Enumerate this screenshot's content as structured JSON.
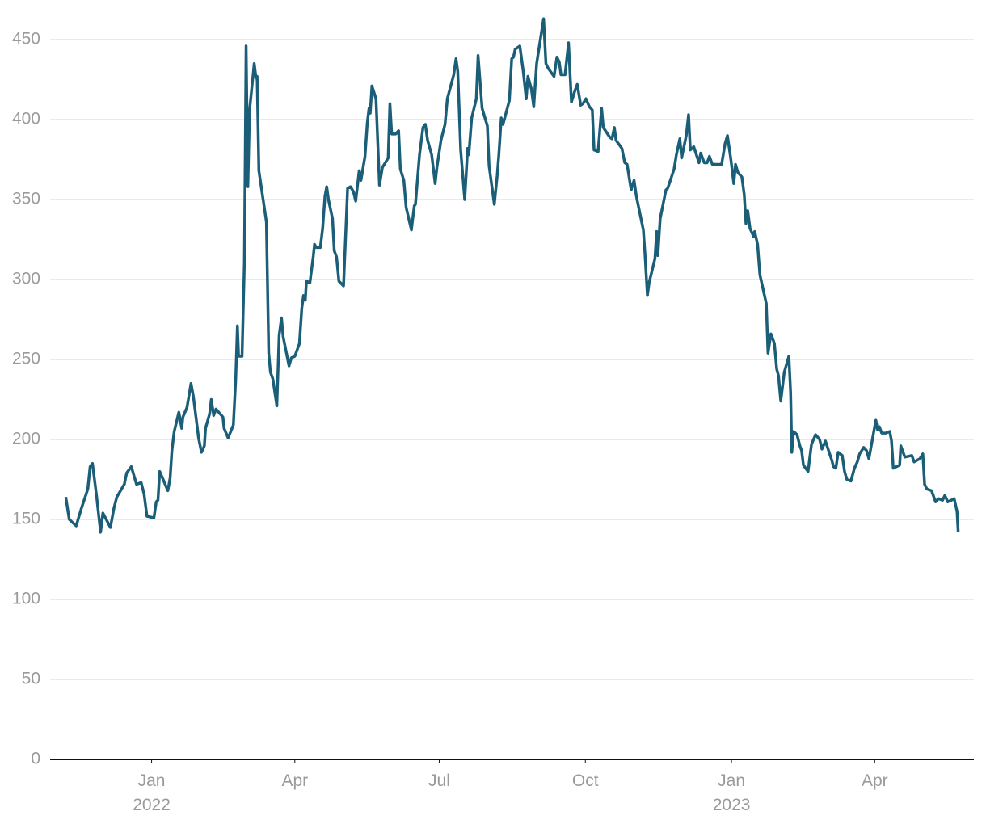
{
  "chart_data": {
    "type": "line",
    "x": [
      2021.852,
      2021.858,
      2021.87,
      2021.879,
      2021.89,
      2021.894,
      2021.898,
      2021.905,
      2021.912,
      2021.916,
      2021.929,
      2021.935,
      2021.94,
      2021.953,
      2021.957,
      2021.965,
      2021.974,
      2021.982,
      2021.987,
      2021.992,
      2022.004,
      2022.008,
      2022.011,
      2022.014,
      2022.028,
      2022.032,
      2022.035,
      2022.039,
      2022.047,
      2022.052,
      2022.054,
      2022.061,
      2022.068,
      2022.072,
      2022.081,
      2022.086,
      2022.091,
      2022.093,
      2022.1,
      2022.103,
      2022.107,
      2022.111,
      2022.123,
      2022.125,
      2022.132,
      2022.141,
      2022.145,
      2022.148,
      2022.15,
      2022.156,
      2022.16,
      2022.163,
      2022.166,
      2022.169,
      2022.177,
      2022.18,
      2022.182,
      2022.185,
      2022.198,
      2022.202,
      2022.205,
      2022.209,
      2022.216,
      2022.22,
      2022.224,
      2022.227,
      2022.237,
      2022.241,
      2022.247,
      2022.255,
      2022.259,
      2022.262,
      2022.265,
      2022.267,
      2022.273,
      2022.279,
      2022.281,
      2022.284,
      2022.291,
      2022.295,
      2022.299,
      2022.302,
      2022.305,
      2022.312,
      2022.315,
      2022.319,
      2022.323,
      2022.331,
      2022.338,
      2022.343,
      2022.348,
      2022.352,
      2022.358,
      2022.361,
      2022.368,
      2022.372,
      2022.375,
      2022.377,
      2022.38,
      2022.387,
      2022.393,
      2022.398,
      2022.408,
      2022.411,
      2022.414,
      2022.421,
      2022.426,
      2022.429,
      2022.435,
      2022.439,
      2022.448,
      2022.453,
      2022.455,
      2022.462,
      2022.468,
      2022.472,
      2022.476,
      2022.483,
      2022.489,
      2022.492,
      2022.499,
      2022.506,
      2022.51,
      2022.521,
      2022.525,
      2022.528,
      2022.533,
      2022.54,
      2022.545,
      2022.547,
      2022.552,
      2022.56,
      2022.563,
      2022.567,
      2022.57,
      2022.579,
      2022.582,
      2022.591,
      2022.596,
      2022.599,
      2022.603,
      2022.606,
      2022.617,
      2022.621,
      2022.624,
      2022.627,
      2022.635,
      2022.641,
      2022.646,
      2022.649,
      2022.655,
      2022.659,
      2022.664,
      2022.676,
      2022.68,
      2022.684,
      2022.694,
      2022.699,
      2022.703,
      2022.706,
      2022.713,
      2022.719,
      2022.724,
      2022.73,
      2022.734,
      2022.74,
      2022.744,
      2022.749,
      2022.755,
      2022.76,
      2022.763,
      2022.77,
      2022.776,
      2022.779,
      2022.79,
      2022.794,
      2022.798,
      2022.801,
      2022.811,
      2022.816,
      2022.82,
      2022.827,
      2022.832,
      2022.836,
      2022.848,
      2022.851,
      2022.855,
      2022.858,
      2022.868,
      2022.871,
      2022.873,
      2022.877,
      2022.887,
      2022.89,
      2022.901,
      2022.905,
      2022.911,
      2022.914,
      2022.922,
      2022.926,
      2022.929,
      2022.935,
      2022.944,
      2022.947,
      2022.953,
      2022.958,
      2022.962,
      2022.967,
      2022.983,
      2022.989,
      2022.993,
      2022.999,
      2023.004,
      2023.007,
      2023.011,
      2023.018,
      2023.022,
      2023.025,
      2023.028,
      2023.032,
      2023.038,
      2023.04,
      2023.045,
      2023.049,
      2023.06,
      2023.063,
      2023.068,
      2023.074,
      2023.078,
      2023.081,
      2023.085,
      2023.091,
      2023.099,
      2023.102,
      2023.104,
      2023.107,
      2023.113,
      2023.118,
      2023.121,
      2023.124,
      2023.132,
      2023.138,
      2023.145,
      2023.152,
      2023.156,
      2023.162,
      2023.173,
      2023.176,
      2023.18,
      2023.184,
      2023.191,
      2023.195,
      2023.199,
      2023.206,
      2023.212,
      2023.217,
      2023.221,
      2023.228,
      2023.233,
      2023.237,
      2023.241,
      2023.249,
      2023.252,
      2023.255,
      2023.259,
      2023.266,
      2023.273,
      2023.276,
      2023.279,
      2023.29,
      2023.292,
      2023.299,
      2023.311,
      2023.315,
      2023.325,
      2023.33,
      2023.333,
      2023.337,
      2023.345,
      2023.352,
      2023.357,
      2023.364,
      2023.368,
      2023.373,
      2023.379,
      2023.384,
      2023.389,
      2023.391
    ],
    "values": [
      164,
      150,
      146,
      157,
      169,
      183,
      185,
      165,
      142,
      154,
      145,
      157,
      164,
      172,
      179,
      183,
      172,
      173,
      166,
      152,
      151,
      161,
      162,
      180,
      168,
      176,
      193,
      205,
      217,
      207,
      214,
      220,
      235,
      227,
      201,
      192,
      196,
      207,
      216,
      225,
      215,
      219,
      214,
      207,
      201,
      209,
      237,
      271,
      252,
      252,
      310,
      446,
      358,
      406,
      435,
      426,
      427,
      368,
      336,
      254,
      242,
      238,
      221,
      265,
      276,
      264,
      246,
      251,
      252,
      260,
      282,
      290,
      287,
      299,
      298,
      315,
      322,
      320,
      320,
      332,
      352,
      358,
      350,
      338,
      318,
      314,
      299,
      296,
      357,
      358,
      355,
      349,
      368,
      362,
      377,
      398,
      407,
      404,
      421,
      413,
      359,
      370,
      376,
      410,
      391,
      391,
      393,
      369,
      362,
      345,
      331,
      346,
      347,
      378,
      395,
      397,
      387,
      378,
      360,
      370,
      387,
      397,
      413,
      428,
      438,
      430,
      381,
      350,
      382,
      378,
      401,
      413,
      440,
      421,
      407,
      396,
      371,
      347,
      365,
      379,
      401,
      397,
      412,
      438,
      439,
      444,
      446,
      430,
      413,
      427,
      419,
      408,
      435,
      463,
      435,
      432,
      427,
      439,
      436,
      428,
      428,
      448,
      411,
      418,
      422,
      409,
      410,
      413,
      408,
      406,
      381,
      380,
      407,
      395,
      389,
      388,
      395,
      387,
      382,
      373,
      372,
      356,
      362,
      352,
      331,
      315,
      290,
      298,
      313,
      330,
      315,
      338,
      356,
      357,
      369,
      378,
      388,
      376,
      390,
      403,
      381,
      383,
      373,
      379,
      373,
      373,
      377,
      372,
      372,
      385,
      390,
      375,
      360,
      372,
      367,
      364,
      353,
      335,
      343,
      332,
      327,
      330,
      322,
      303,
      285,
      254,
      266,
      260,
      244,
      240,
      224,
      242,
      252,
      229,
      192,
      205,
      203,
      196,
      193,
      184,
      180,
      197,
      203,
      200,
      194,
      199,
      187,
      183,
      182,
      192,
      190,
      180,
      175,
      174,
      182,
      186,
      191,
      195,
      193,
      188,
      196,
      212,
      206,
      208,
      204,
      204,
      205,
      199,
      182,
      184,
      196,
      189,
      190,
      186,
      188,
      191,
      172,
      169,
      168,
      161,
      163,
      162,
      165,
      161,
      162,
      163,
      155,
      142
    ],
    "color": "#1b5e78",
    "xlim": [
      2021.825,
      2023.418
    ],
    "xticks": [
      {
        "value": 2022,
        "label": "Jan 2022"
      },
      {
        "value": 2022.247,
        "label": "Apr"
      },
      {
        "value": 2022.496,
        "label": "Jul"
      },
      {
        "value": 2022.748,
        "label": "Oct"
      },
      {
        "value": 2023,
        "label": "Jan 2023"
      },
      {
        "value": 2023.247,
        "label": "Apr"
      }
    ],
    "ylim": [
      0,
      450
    ],
    "yticks": [
      0,
      50,
      100,
      150,
      200,
      250,
      300,
      350,
      400,
      450
    ],
    "grid": true
  }
}
